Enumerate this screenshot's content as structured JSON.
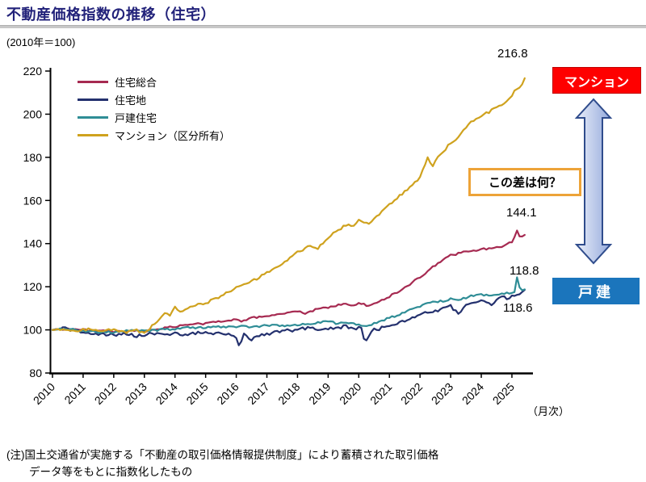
{
  "header": {
    "title": "不動産価格指数の推移（住宅）",
    "title_color": "#22227A",
    "rule_color": "#C8C8C8"
  },
  "chart_data": {
    "type": "line",
    "title": "不動産価格指数の推移（住宅）",
    "y_note": "(2010年＝100)",
    "x_unit_label": "（月次）",
    "ylim": [
      80,
      220
    ],
    "yticks": [
      80,
      100,
      120,
      140,
      160,
      180,
      200,
      220
    ],
    "xticks": [
      2010,
      2011,
      2012,
      2013,
      2014,
      2015,
      2016,
      2017,
      2018,
      2019,
      2020,
      2021,
      2022,
      2023,
      2024,
      2025
    ],
    "x_end": 2025.42,
    "grid": false,
    "legend_position": "top-left-inside",
    "frequency": "monthly",
    "series": [
      {
        "name": "住宅総合",
        "color": "#A62A51",
        "end_value": 144.1,
        "end_label": "144.1",
        "noise": 0.45,
        "seed": 3,
        "anchors": [
          [
            2010.0,
            100
          ],
          [
            2010.5,
            100.5
          ],
          [
            2011.0,
            100
          ],
          [
            2011.6,
            99.5
          ],
          [
            2012.0,
            99
          ],
          [
            2012.5,
            99.5
          ],
          [
            2013.0,
            99.5
          ],
          [
            2013.5,
            100.5
          ],
          [
            2014.0,
            101.5
          ],
          [
            2014.5,
            102.5
          ],
          [
            2015.0,
            103
          ],
          [
            2015.5,
            104
          ],
          [
            2016.0,
            105
          ],
          [
            2016.2,
            104
          ],
          [
            2016.5,
            105.5
          ],
          [
            2017.0,
            106.5
          ],
          [
            2017.5,
            107.5
          ],
          [
            2018.0,
            108.5
          ],
          [
            2018.3,
            107.5
          ],
          [
            2018.6,
            109.5
          ],
          [
            2019.0,
            110.5
          ],
          [
            2019.5,
            112
          ],
          [
            2019.8,
            111
          ],
          [
            2020.0,
            112.5
          ],
          [
            2020.35,
            111
          ],
          [
            2020.7,
            113.5
          ],
          [
            2021.0,
            115.5
          ],
          [
            2021.5,
            119.5
          ],
          [
            2022.0,
            124.5
          ],
          [
            2022.5,
            130
          ],
          [
            2023.0,
            134.5
          ],
          [
            2023.4,
            136
          ],
          [
            2023.7,
            136.5
          ],
          [
            2024.0,
            137.5
          ],
          [
            2024.4,
            137.5
          ],
          [
            2024.8,
            139.5
          ],
          [
            2025.0,
            141
          ],
          [
            2025.17,
            146
          ],
          [
            2025.27,
            142.5
          ],
          [
            2025.42,
            144.1
          ]
        ]
      },
      {
        "name": "住宅地",
        "color": "#24316E",
        "end_value": 118.6,
        "end_label": "118.6",
        "noise": 0.8,
        "seed": 7,
        "anchors": [
          [
            2010.0,
            100
          ],
          [
            2010.4,
            100.5
          ],
          [
            2011.0,
            99
          ],
          [
            2011.5,
            98
          ],
          [
            2012.0,
            97.5
          ],
          [
            2012.4,
            98.5
          ],
          [
            2012.8,
            97
          ],
          [
            2013.2,
            98.5
          ],
          [
            2013.6,
            97.5
          ],
          [
            2014.0,
            98.5
          ],
          [
            2014.4,
            97.5
          ],
          [
            2014.8,
            99
          ],
          [
            2015.2,
            98
          ],
          [
            2015.6,
            98.5
          ],
          [
            2016.0,
            97
          ],
          [
            2016.08,
            93
          ],
          [
            2016.25,
            97.5
          ],
          [
            2016.5,
            95.5
          ],
          [
            2016.8,
            98
          ],
          [
            2017.2,
            98.5
          ],
          [
            2017.6,
            99.5
          ],
          [
            2018.0,
            100
          ],
          [
            2018.4,
            101
          ],
          [
            2018.8,
            100
          ],
          [
            2019.2,
            101
          ],
          [
            2019.6,
            101.5
          ],
          [
            2019.9,
            100.5
          ],
          [
            2020.1,
            101
          ],
          [
            2020.2,
            93.5
          ],
          [
            2020.45,
            100
          ],
          [
            2020.8,
            101
          ],
          [
            2021.0,
            102
          ],
          [
            2021.3,
            103.5
          ],
          [
            2021.6,
            104.5
          ],
          [
            2022.0,
            107
          ],
          [
            2022.4,
            108.5
          ],
          [
            2022.8,
            110
          ],
          [
            2023.0,
            111
          ],
          [
            2023.25,
            107.5
          ],
          [
            2023.5,
            111.5
          ],
          [
            2023.8,
            112.5
          ],
          [
            2024.0,
            113.5
          ],
          [
            2024.3,
            111.5
          ],
          [
            2024.6,
            115
          ],
          [
            2024.9,
            114.5
          ],
          [
            2025.1,
            116.5
          ],
          [
            2025.3,
            117
          ],
          [
            2025.42,
            118.6
          ]
        ]
      },
      {
        "name": "戸建住宅",
        "color": "#2F8D96",
        "end_value": 118.8,
        "end_label": "118.8",
        "noise": 0.5,
        "seed": 11,
        "anchors": [
          [
            2010.0,
            100
          ],
          [
            2010.5,
            100.5
          ],
          [
            2011.0,
            99.5
          ],
          [
            2011.5,
            99
          ],
          [
            2012.0,
            99
          ],
          [
            2012.5,
            99.5
          ],
          [
            2013.0,
            99.5
          ],
          [
            2013.5,
            100
          ],
          [
            2014.0,
            100.5
          ],
          [
            2014.5,
            101
          ],
          [
            2015.0,
            101
          ],
          [
            2015.5,
            101.5
          ],
          [
            2016.0,
            101.5
          ],
          [
            2016.5,
            101.5
          ],
          [
            2017.0,
            102
          ],
          [
            2017.5,
            102
          ],
          [
            2018.0,
            102.5
          ],
          [
            2018.5,
            103
          ],
          [
            2019.0,
            104
          ],
          [
            2019.3,
            103
          ],
          [
            2019.7,
            103.5
          ],
          [
            2020.0,
            102.5
          ],
          [
            2020.3,
            101.5
          ],
          [
            2020.6,
            103.5
          ],
          [
            2021.0,
            105.5
          ],
          [
            2021.4,
            107.5
          ],
          [
            2021.8,
            110
          ],
          [
            2022.0,
            111
          ],
          [
            2022.4,
            113
          ],
          [
            2022.8,
            113.5
          ],
          [
            2023.0,
            114.5
          ],
          [
            2023.3,
            114
          ],
          [
            2023.6,
            115.5
          ],
          [
            2024.0,
            116.5
          ],
          [
            2024.3,
            116
          ],
          [
            2024.6,
            116.5
          ],
          [
            2024.9,
            117
          ],
          [
            2025.08,
            117.5
          ],
          [
            2025.17,
            125
          ],
          [
            2025.28,
            118
          ],
          [
            2025.42,
            118.8
          ]
        ]
      },
      {
        "name": "マンション（区分所有）",
        "color": "#CFA21E",
        "end_value": 216.8,
        "end_label": "216.8",
        "noise": 0.6,
        "seed": 17,
        "anchors": [
          [
            2010.0,
            100
          ],
          [
            2010.4,
            100.5
          ],
          [
            2010.8,
            99.5
          ],
          [
            2011.2,
            100.5
          ],
          [
            2011.6,
            99.5
          ],
          [
            2012.0,
            100
          ],
          [
            2012.4,
            99
          ],
          [
            2012.7,
            100
          ],
          [
            2012.95,
            98.5
          ],
          [
            2013.2,
            101
          ],
          [
            2013.5,
            105
          ],
          [
            2013.7,
            108.5
          ],
          [
            2013.8,
            106
          ],
          [
            2014.0,
            110.5
          ],
          [
            2014.15,
            108
          ],
          [
            2014.4,
            110
          ],
          [
            2014.7,
            111.5
          ],
          [
            2015.0,
            112.5
          ],
          [
            2015.5,
            115.5
          ],
          [
            2016.0,
            119.5
          ],
          [
            2016.5,
            122.5
          ],
          [
            2017.0,
            126.5
          ],
          [
            2017.5,
            131
          ],
          [
            2018.0,
            136
          ],
          [
            2018.4,
            139
          ],
          [
            2018.65,
            137.5
          ],
          [
            2019.0,
            143
          ],
          [
            2019.4,
            147
          ],
          [
            2019.6,
            149
          ],
          [
            2019.8,
            148
          ],
          [
            2020.0,
            151
          ],
          [
            2020.3,
            149
          ],
          [
            2020.6,
            153
          ],
          [
            2021.0,
            158
          ],
          [
            2021.5,
            164
          ],
          [
            2022.0,
            170.5
          ],
          [
            2022.25,
            179.5
          ],
          [
            2022.4,
            176
          ],
          [
            2022.7,
            182
          ],
          [
            2023.0,
            186.5
          ],
          [
            2023.3,
            190
          ],
          [
            2023.6,
            196
          ],
          [
            2024.0,
            199
          ],
          [
            2024.3,
            201.5
          ],
          [
            2024.6,
            204
          ],
          [
            2024.9,
            207
          ],
          [
            2025.1,
            211
          ],
          [
            2025.25,
            212
          ],
          [
            2025.35,
            214
          ],
          [
            2025.42,
            216.8
          ]
        ]
      }
    ]
  },
  "annotations": {
    "mansion_box": {
      "label": "マンション",
      "bg": "#FE0000",
      "border": "#C00000",
      "text_color": "#FFFFFF"
    },
    "kodate_box": {
      "label": "戸建",
      "bg": "#1B75BC",
      "text_color": "#FFFFFF"
    },
    "question_box": {
      "label": "この差は何？",
      "border": "#EDA338",
      "bg": "#FFFFFF",
      "text_color": "#000000"
    },
    "arrow": {
      "fill_from": "#EAEEF9",
      "fill_to": "#94AADC",
      "border": "#2F4C8C",
      "direction": "double-vertical"
    }
  },
  "footnote": {
    "line1": "(注)国土交通省が実施する「不動産の取引価格情報提供制度」により蓄積された取引価格",
    "line2": "データ等をもとに指数化したもの"
  }
}
